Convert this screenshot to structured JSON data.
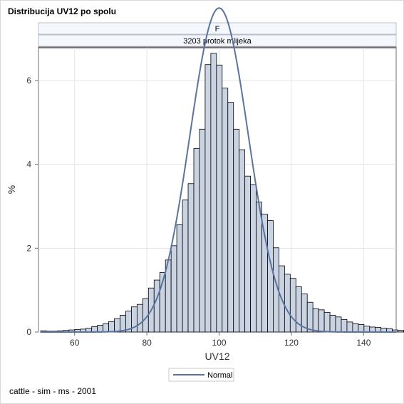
{
  "title": "Distribucija UV12 po spolu",
  "footnote": "cattle - sim - ms - 2001",
  "chart_data": {
    "type": "bar",
    "panel_headers": [
      "F",
      "3203 protok mlijeka"
    ],
    "xlabel": "UV12",
    "ylabel": "%",
    "xlim": [
      50,
      149
    ],
    "ylim": [
      0,
      6.8
    ],
    "xticks": [
      60,
      80,
      100,
      120,
      140
    ],
    "yticks": [
      0,
      2,
      4,
      6
    ],
    "bin_width": 1.57,
    "bin_start": 50.6,
    "values": [
      0.03,
      0.02,
      0.02,
      0.03,
      0.04,
      0.05,
      0.06,
      0.07,
      0.09,
      0.13,
      0.16,
      0.2,
      0.25,
      0.32,
      0.4,
      0.5,
      0.6,
      0.66,
      0.8,
      1.05,
      1.24,
      1.42,
      1.72,
      2.06,
      2.56,
      3.15,
      3.54,
      4.38,
      4.84,
      6.38,
      6.65,
      6.37,
      5.82,
      5.48,
      4.84,
      4.35,
      3.72,
      3.52,
      3.1,
      2.81,
      2.66,
      2.01,
      1.58,
      1.38,
      1.28,
      1.08,
      0.91,
      0.71,
      0.56,
      0.53,
      0.47,
      0.4,
      0.36,
      0.3,
      0.24,
      0.2,
      0.18,
      0.14,
      0.12,
      0.11,
      0.09,
      0.08,
      0.05,
      0.04,
      0.01,
      0.25
    ],
    "curve": {
      "name": "Normal",
      "mean": 100,
      "sd": 8.1,
      "color": "#5a73a0"
    },
    "bar_fill": "#c9d3e2",
    "bar_stroke": "#000000",
    "grid": true,
    "legend_placement": "bottom",
    "legend": [
      {
        "label": "Normal"
      }
    ]
  }
}
